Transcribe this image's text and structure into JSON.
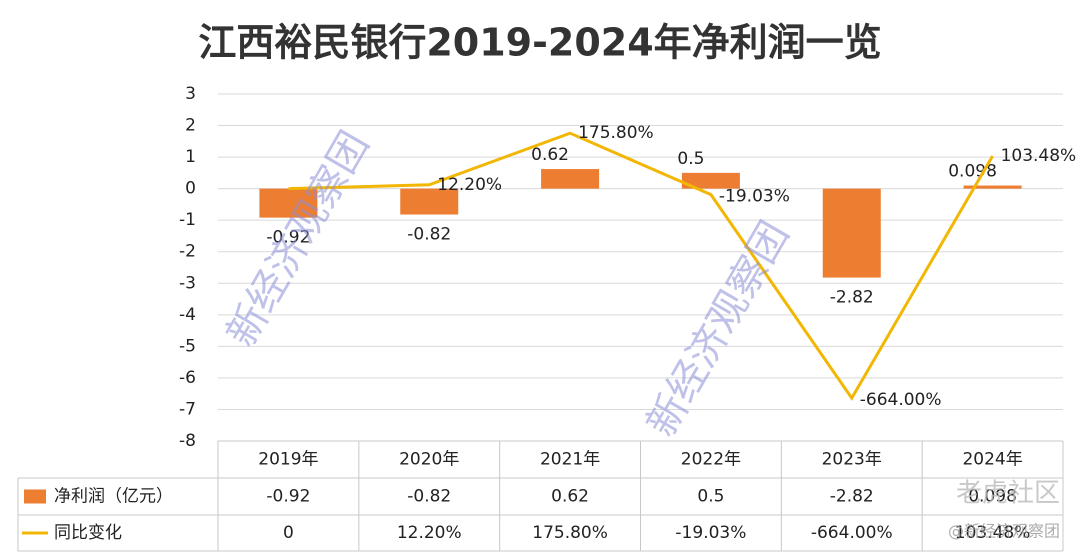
{
  "chart_data": {
    "type": "bar_line",
    "title": "江西裕民银行2019-2024年净利润一览",
    "categories": [
      "2019年",
      "2020年",
      "2021年",
      "2022年",
      "2023年",
      "2024年"
    ],
    "series": [
      {
        "name": "净利润（亿元）",
        "type": "bar",
        "color": "#ed7d31",
        "values": [
          -0.92,
          -0.82,
          0.62,
          0.5,
          -2.82,
          0.098
        ]
      },
      {
        "name": "同比变化",
        "type": "line",
        "color": "#f2b705",
        "values": [
          0,
          0.122,
          1.758,
          -0.1903,
          -6.64,
          1.0348
        ],
        "value_labels": [
          "0",
          "12.20%",
          "175.80%",
          "-19.03%",
          "-664.00%",
          "103.48%"
        ]
      }
    ],
    "ylim": [
      -8,
      3
    ],
    "yticks": [
      -8,
      -7,
      -6,
      -5,
      -4,
      -3,
      -2,
      -1,
      0,
      1,
      2,
      3
    ],
    "grid": true,
    "watermarks": [
      "新经济观察团",
      "新经济观察团"
    ],
    "footer_logo": "老虎社区",
    "footer_handle": "@新经济观察团"
  }
}
